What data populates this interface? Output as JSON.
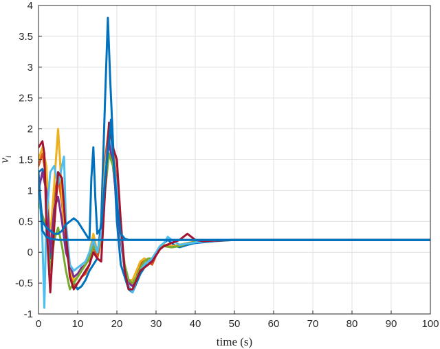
{
  "chart_data": {
    "type": "line",
    "title": "",
    "xlabel": "time (s)",
    "ylabel": "v_i",
    "ylabel_main": "v",
    "ylabel_sub": "i",
    "xlim": [
      0,
      100
    ],
    "ylim": [
      -1,
      4
    ],
    "xticks": [
      0,
      10,
      20,
      30,
      40,
      50,
      60,
      70,
      80,
      90,
      100
    ],
    "yticks": [
      -1,
      -0.5,
      0,
      0.5,
      1,
      1.5,
      2,
      2.5,
      3,
      3.5,
      4
    ],
    "grid": true,
    "legend": "none",
    "series": [
      {
        "color": "#0072BD",
        "x": [
          0,
          1,
          2,
          3,
          4,
          5,
          6,
          7,
          8,
          9,
          10,
          11,
          12,
          13,
          14,
          15,
          16,
          17,
          17.7,
          18.3,
          19,
          20,
          21,
          22,
          23,
          24,
          25,
          26,
          27,
          28,
          29,
          30,
          31,
          32,
          33,
          34,
          35,
          36,
          38,
          40,
          45,
          50,
          60,
          70,
          80,
          90,
          100
        ],
        "y": [
          1.3,
          1.35,
          1.1,
          -0.1,
          0.9,
          1.25,
          0.9,
          0.3,
          -0.2,
          -0.5,
          -0.6,
          -0.55,
          -0.45,
          -0.3,
          -0.2,
          -0.1,
          0.5,
          2.5,
          3.8,
          2.8,
          1.8,
          0.5,
          -0.2,
          -0.4,
          -0.6,
          -0.65,
          -0.5,
          -0.35,
          -0.25,
          -0.15,
          -0.1,
          -0.05,
          0.05,
          0.15,
          0.2,
          0.15,
          0.1,
          0.08,
          0.12,
          0.15,
          0.18,
          0.2,
          0.2,
          0.2,
          0.2,
          0.2,
          0.2
        ]
      },
      {
        "color": "#D95319",
        "x": [
          0,
          1,
          2,
          3,
          4,
          5,
          6,
          7,
          8,
          9,
          10,
          11,
          12,
          13,
          14,
          15,
          16,
          17,
          18,
          19,
          20,
          21,
          22,
          23,
          24,
          25,
          26,
          27,
          28,
          29,
          30,
          31,
          32,
          34,
          36,
          38,
          40,
          45,
          50,
          60,
          70,
          80,
          90,
          100
        ],
        "y": [
          1.4,
          1.6,
          1.2,
          0.1,
          0.95,
          1.2,
          0.8,
          0.1,
          -0.3,
          -0.55,
          -0.5,
          -0.4,
          -0.35,
          -0.2,
          0.1,
          -0.1,
          0.2,
          1.5,
          2.05,
          1.7,
          1.1,
          0.3,
          -0.3,
          -0.5,
          -0.5,
          -0.4,
          -0.2,
          -0.1,
          -0.15,
          -0.2,
          -0.05,
          0.05,
          0.1,
          0.08,
          0.12,
          0.15,
          0.17,
          0.19,
          0.2,
          0.2,
          0.2,
          0.2,
          0.2,
          0.2
        ]
      },
      {
        "color": "#EDB120",
        "x": [
          0,
          1,
          2,
          3,
          4,
          5,
          5.5,
          6,
          7,
          8,
          9,
          10,
          11,
          12,
          13,
          14,
          15,
          16,
          17,
          18,
          19,
          20,
          21,
          22,
          23,
          24,
          25,
          26,
          27,
          28,
          29,
          30,
          31,
          32,
          34,
          36,
          38,
          40,
          45,
          50,
          60,
          70,
          80,
          90,
          100
        ],
        "y": [
          1.5,
          1.7,
          1.4,
          0.2,
          1.1,
          2.0,
          1.5,
          0.9,
          0.1,
          -0.3,
          -0.45,
          -0.4,
          -0.3,
          -0.2,
          0.0,
          0.3,
          0.0,
          0.3,
          1.4,
          1.9,
          1.5,
          0.9,
          0.2,
          -0.3,
          -0.45,
          -0.45,
          -0.3,
          -0.15,
          -0.1,
          -0.2,
          -0.15,
          -0.05,
          0.05,
          0.12,
          0.1,
          0.12,
          0.15,
          0.17,
          0.19,
          0.2,
          0.2,
          0.2,
          0.2,
          0.2,
          0.2
        ]
      },
      {
        "color": "#7E2F8E",
        "x": [
          0,
          1,
          2,
          3,
          4,
          5,
          6,
          7,
          8,
          9,
          10,
          11,
          12,
          13,
          14,
          15,
          16,
          17,
          18,
          19,
          20,
          21,
          22,
          23,
          24,
          25,
          26,
          27,
          28,
          29,
          30,
          31,
          32,
          34,
          36,
          38,
          40,
          45,
          50,
          60,
          70,
          80,
          90,
          100
        ],
        "y": [
          1.0,
          1.3,
          1.0,
          0.0,
          0.7,
          0.9,
          0.5,
          0.0,
          -0.2,
          -0.4,
          -0.35,
          -0.25,
          -0.2,
          -0.1,
          0.2,
          0.0,
          0.3,
          1.2,
          1.8,
          1.4,
          0.8,
          0.2,
          -0.3,
          -0.5,
          -0.55,
          -0.45,
          -0.3,
          -0.2,
          -0.15,
          -0.15,
          -0.05,
          0.05,
          0.1,
          0.08,
          0.1,
          0.14,
          0.17,
          0.19,
          0.2,
          0.2,
          0.2,
          0.2,
          0.2,
          0.2
        ]
      },
      {
        "color": "#77AC30",
        "x": [
          0,
          1,
          2,
          3,
          4,
          5,
          6,
          7,
          8,
          9,
          10,
          11,
          12,
          13,
          14,
          15,
          16,
          17,
          18,
          19,
          20,
          21,
          22,
          23,
          24,
          25,
          26,
          27,
          28,
          29,
          30,
          31,
          32,
          34,
          36,
          38,
          40,
          45,
          50,
          60,
          70,
          80,
          90,
          100
        ],
        "y": [
          0.8,
          0.6,
          0.4,
          -0.3,
          0.2,
          0.4,
          0.1,
          -0.3,
          -0.6,
          -0.5,
          -0.4,
          -0.3,
          -0.2,
          -0.1,
          0.1,
          0.0,
          0.2,
          1.0,
          1.6,
          1.4,
          1.0,
          0.3,
          -0.2,
          -0.45,
          -0.5,
          -0.4,
          -0.25,
          -0.15,
          -0.1,
          -0.1,
          0.0,
          0.05,
          0.1,
          0.08,
          0.1,
          0.14,
          0.17,
          0.19,
          0.2,
          0.2,
          0.2,
          0.2,
          0.2,
          0.2
        ]
      },
      {
        "color": "#4DBEEE",
        "x": [
          0,
          1,
          1.5,
          2,
          3,
          4,
          5,
          6,
          6.5,
          7,
          8,
          9,
          10,
          11,
          12,
          13,
          14,
          15,
          16,
          17,
          18,
          19,
          20,
          21,
          22,
          23,
          24,
          25,
          26,
          27,
          28,
          29,
          30,
          31,
          32,
          33,
          34,
          36,
          38,
          40,
          45,
          50,
          60,
          70,
          80,
          90,
          100
        ],
        "y": [
          1.2,
          0.2,
          -0.9,
          0.5,
          1.3,
          1.4,
          1.1,
          1.4,
          1.55,
          0.5,
          -0.2,
          -0.3,
          -0.25,
          -0.2,
          -0.15,
          0.0,
          0.2,
          0.0,
          0.3,
          1.3,
          2.0,
          1.6,
          1.0,
          0.3,
          -0.3,
          -0.55,
          -0.65,
          -0.45,
          -0.3,
          -0.2,
          -0.15,
          -0.1,
          0.0,
          0.1,
          0.15,
          0.25,
          0.2,
          0.12,
          0.14,
          0.16,
          0.19,
          0.2,
          0.2,
          0.2,
          0.2,
          0.2,
          0.2
        ]
      },
      {
        "color": "#A2142F",
        "x": [
          0,
          1,
          1.5,
          2,
          3,
          4,
          5,
          6,
          7,
          8,
          9,
          10,
          11,
          12,
          13,
          14,
          15,
          16,
          17,
          18,
          18.5,
          19,
          20,
          21,
          22,
          23,
          24,
          25,
          26,
          27,
          28,
          29,
          30,
          31,
          32,
          34,
          36,
          38,
          40,
          42,
          45,
          50,
          60,
          70,
          80,
          90,
          100
        ],
        "y": [
          1.7,
          1.8,
          1.6,
          0.5,
          -0.65,
          0.4,
          1.3,
          1.2,
          0.3,
          -0.4,
          -0.6,
          -0.5,
          -0.4,
          -0.3,
          -0.2,
          0.0,
          -0.1,
          -0.15,
          1.0,
          2.1,
          1.9,
          1.7,
          1.5,
          0.5,
          -0.3,
          -0.6,
          -0.6,
          -0.45,
          -0.3,
          -0.25,
          -0.2,
          -0.15,
          -0.05,
          0.05,
          0.1,
          0.15,
          0.2,
          0.3,
          0.2,
          0.18,
          0.19,
          0.2,
          0.2,
          0.2,
          0.2,
          0.2,
          0.2
        ]
      },
      {
        "color": "#0072BD",
        "x": [
          0,
          1,
          2,
          3,
          4,
          5,
          6,
          7,
          8,
          9,
          10,
          11,
          12,
          13,
          13.5,
          14,
          14.5,
          15,
          16,
          17,
          18,
          18.5,
          19,
          20,
          21,
          22,
          23,
          25,
          30,
          35,
          40,
          50,
          60,
          70,
          80,
          90,
          100
        ],
        "y": [
          1.2,
          0.5,
          0.4,
          0.35,
          0.3,
          0.3,
          0.35,
          0.45,
          0.5,
          0.55,
          0.5,
          0.4,
          0.3,
          0.2,
          1.2,
          1.7,
          0.9,
          0.3,
          0.4,
          1.2,
          1.8,
          2.15,
          1.6,
          0.8,
          0.3,
          0.22,
          0.2,
          0.2,
          0.2,
          0.2,
          0.2,
          0.2,
          0.2,
          0.2,
          0.2,
          0.2,
          0.2
        ]
      },
      {
        "color": "#0072BD",
        "x": [
          0,
          1,
          2,
          3,
          4,
          5,
          6,
          7,
          8,
          9,
          10,
          11,
          12,
          13,
          14,
          15,
          20,
          30,
          40,
          50,
          60,
          70,
          80,
          90,
          100
        ],
        "y": [
          1.3,
          0.35,
          0.25,
          0.22,
          0.21,
          0.2,
          0.2,
          0.2,
          0.2,
          0.2,
          0.2,
          0.2,
          0.2,
          0.2,
          0.2,
          0.2,
          0.2,
          0.2,
          0.2,
          0.2,
          0.2,
          0.2,
          0.2,
          0.2,
          0.2
        ]
      }
    ]
  }
}
